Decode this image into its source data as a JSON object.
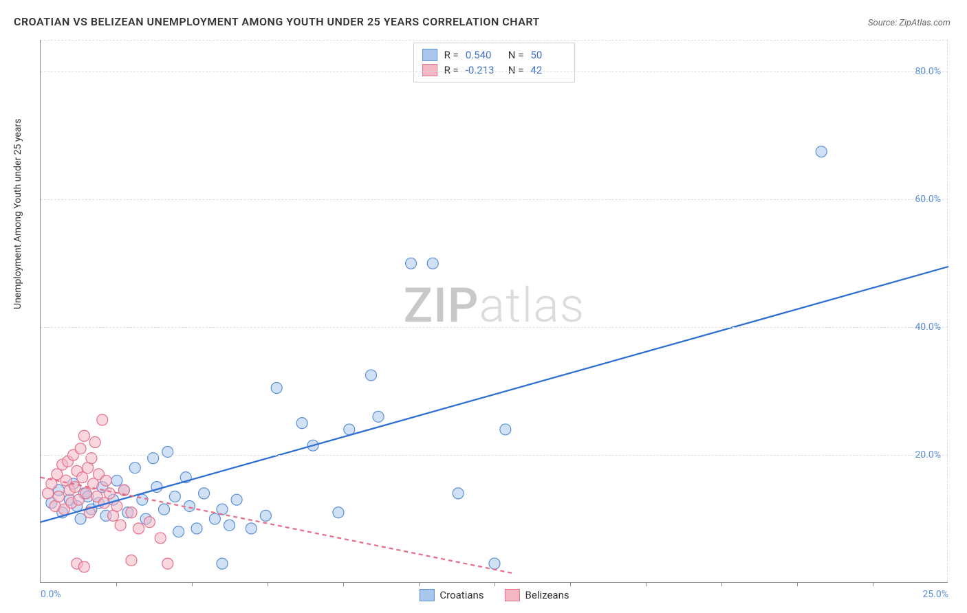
{
  "title": "CROATIAN VS BELIZEAN UNEMPLOYMENT AMONG YOUTH UNDER 25 YEARS CORRELATION CHART",
  "source_label": "Source: ZipAtlas.com",
  "ylabel": "Unemployment Among Youth under 25 years",
  "watermark": {
    "part1": "ZIP",
    "part2": "atlas"
  },
  "chart": {
    "type": "scatter",
    "background_color": "#ffffff",
    "grid_color": "#dddddd",
    "axis_color": "#888888",
    "tick_label_color": "#5a8fd6",
    "tick_fontsize": 14,
    "label_fontsize": 14,
    "title_fontsize": 16,
    "xlim": [
      0,
      25
    ],
    "ylim": [
      0,
      85
    ],
    "yticks": [
      20,
      40,
      60,
      80
    ],
    "ytick_labels": [
      "20.0%",
      "40.0%",
      "60.0%",
      "80.0%"
    ],
    "xtick_marks": [
      2.08,
      4.17,
      6.25,
      8.33,
      10.42,
      12.5,
      14.58,
      16.67,
      18.75,
      20.83,
      22.92
    ],
    "xtick_labels": [
      {
        "x": 0,
        "label": "0.0%"
      },
      {
        "x": 25,
        "label": "25.0%"
      }
    ],
    "marker_radius": 8,
    "marker_stroke_width": 1.2,
    "line_width": 2.3,
    "series": [
      {
        "name": "Croatians",
        "fill_color": "#a9c7ec",
        "stroke_color": "#5a8fd6",
        "fill_opacity": 0.55,
        "line_color": "#2e6fd1",
        "line_dash": "none",
        "stats": {
          "R": "0.540",
          "N": "50"
        },
        "trend": {
          "x1": 0,
          "y1": 9.5,
          "x2": 25,
          "y2": 49.5
        },
        "points": [
          [
            0.3,
            12.5
          ],
          [
            0.5,
            14.5
          ],
          [
            0.6,
            11.0
          ],
          [
            0.8,
            13.0
          ],
          [
            0.9,
            15.5
          ],
          [
            1.0,
            12.0
          ],
          [
            1.1,
            10.0
          ],
          [
            1.2,
            14.0
          ],
          [
            1.3,
            13.5
          ],
          [
            1.4,
            11.5
          ],
          [
            1.6,
            12.5
          ],
          [
            1.7,
            15.0
          ],
          [
            1.8,
            10.5
          ],
          [
            2.0,
            13.0
          ],
          [
            2.1,
            16.0
          ],
          [
            2.3,
            14.5
          ],
          [
            2.4,
            11.0
          ],
          [
            2.6,
            18.0
          ],
          [
            2.8,
            13.0
          ],
          [
            2.9,
            10.0
          ],
          [
            3.1,
            19.5
          ],
          [
            3.2,
            15.0
          ],
          [
            3.4,
            11.5
          ],
          [
            3.5,
            20.5
          ],
          [
            3.7,
            13.5
          ],
          [
            3.8,
            8.0
          ],
          [
            4.0,
            16.5
          ],
          [
            4.1,
            12.0
          ],
          [
            4.3,
            8.5
          ],
          [
            4.5,
            14.0
          ],
          [
            4.8,
            10.0
          ],
          [
            5.0,
            11.5
          ],
          [
            5.2,
            9.0
          ],
          [
            5.4,
            13.0
          ],
          [
            5.8,
            8.5
          ],
          [
            6.2,
            10.5
          ],
          [
            6.5,
            30.5
          ],
          [
            7.2,
            25.0
          ],
          [
            7.5,
            21.5
          ],
          [
            8.2,
            11.0
          ],
          [
            8.5,
            24.0
          ],
          [
            9.1,
            32.5
          ],
          [
            9.3,
            26.0
          ],
          [
            10.2,
            50.0
          ],
          [
            10.8,
            50.0
          ],
          [
            11.5,
            14.0
          ],
          [
            12.8,
            24.0
          ],
          [
            12.5,
            3.0
          ],
          [
            21.5,
            67.5
          ],
          [
            5.0,
            3.0
          ]
        ]
      },
      {
        "name": "Belizeans",
        "fill_color": "#f4b7c4",
        "stroke_color": "#e76f8a",
        "fill_opacity": 0.55,
        "line_color": "#e76f8a",
        "line_dash": "6 5",
        "stats": {
          "R": "-0.213",
          "N": "42"
        },
        "trend": {
          "x1": 0,
          "y1": 16.5,
          "x2": 13,
          "y2": 1.5
        },
        "points": [
          [
            0.2,
            14.0
          ],
          [
            0.3,
            15.5
          ],
          [
            0.4,
            12.0
          ],
          [
            0.45,
            17.0
          ],
          [
            0.5,
            13.5
          ],
          [
            0.6,
            18.5
          ],
          [
            0.65,
            11.5
          ],
          [
            0.7,
            16.0
          ],
          [
            0.75,
            19.0
          ],
          [
            0.8,
            14.5
          ],
          [
            0.85,
            12.5
          ],
          [
            0.9,
            20.0
          ],
          [
            0.95,
            15.0
          ],
          [
            1.0,
            17.5
          ],
          [
            1.05,
            13.0
          ],
          [
            1.1,
            21.0
          ],
          [
            1.15,
            16.5
          ],
          [
            1.2,
            23.0
          ],
          [
            1.25,
            14.0
          ],
          [
            1.3,
            18.0
          ],
          [
            1.35,
            11.0
          ],
          [
            1.4,
            19.5
          ],
          [
            1.45,
            15.5
          ],
          [
            1.5,
            22.0
          ],
          [
            1.55,
            13.5
          ],
          [
            1.6,
            17.0
          ],
          [
            1.7,
            25.5
          ],
          [
            1.75,
            12.5
          ],
          [
            1.8,
            16.0
          ],
          [
            1.9,
            14.0
          ],
          [
            2.0,
            10.5
          ],
          [
            2.1,
            12.0
          ],
          [
            2.2,
            9.0
          ],
          [
            2.3,
            14.5
          ],
          [
            2.5,
            11.0
          ],
          [
            2.7,
            8.5
          ],
          [
            3.0,
            9.5
          ],
          [
            3.3,
            7.0
          ],
          [
            1.0,
            3.0
          ],
          [
            1.2,
            2.5
          ],
          [
            2.5,
            3.5
          ],
          [
            3.5,
            3.0
          ]
        ]
      }
    ]
  },
  "legend_bottom": [
    {
      "label": "Croatians",
      "fill": "#a9c7ec",
      "stroke": "#5a8fd6"
    },
    {
      "label": "Belizeans",
      "fill": "#f4b7c4",
      "stroke": "#e76f8a"
    }
  ]
}
